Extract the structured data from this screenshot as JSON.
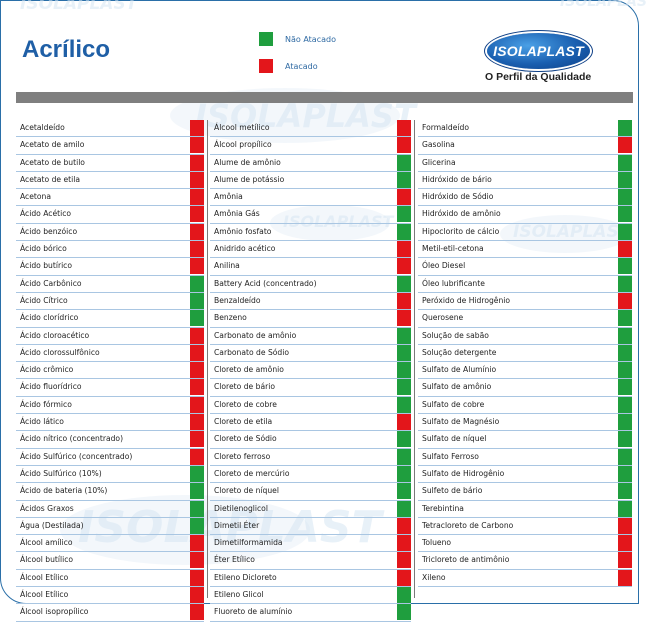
{
  "header": {
    "title": "Acrílico",
    "legend": [
      {
        "label": "Não Atacado",
        "color": "#1f9e3e"
      },
      {
        "label": "Atacado",
        "color": "#e3161b"
      }
    ],
    "logo_text": "ISOLAPLAST",
    "tagline": "O Perfil da Qualidade"
  },
  "colors": {
    "green": "#1f9e3e",
    "red": "#e3161b",
    "accent": "#1f5fa6"
  },
  "columns": [
    [
      {
        "name": "Acetaldeído",
        "status": "red"
      },
      {
        "name": "Acetato de amilo",
        "status": "red"
      },
      {
        "name": "Acetato de butilo",
        "status": "red"
      },
      {
        "name": "Acetato de etila",
        "status": "red"
      },
      {
        "name": "Acetona",
        "status": "red"
      },
      {
        "name": "Ácido Acético",
        "status": "red"
      },
      {
        "name": "Ácido benzóico",
        "status": "red"
      },
      {
        "name": "Ácido bórico",
        "status": "red"
      },
      {
        "name": "Ácido butírico",
        "status": "red"
      },
      {
        "name": "Ácido Carbônico",
        "status": "green"
      },
      {
        "name": "Ácido Cítrico",
        "status": "green"
      },
      {
        "name": "Ácido clorídrico",
        "status": "green"
      },
      {
        "name": "Ácido cloroacético",
        "status": "red"
      },
      {
        "name": "Ácido clorossulfônico",
        "status": "red"
      },
      {
        "name": "Ácido crômico",
        "status": "red"
      },
      {
        "name": "Ácido fluorídrico",
        "status": "red"
      },
      {
        "name": "Ácido fórmico",
        "status": "red"
      },
      {
        "name": "Ácido lático",
        "status": "red"
      },
      {
        "name": "Ácido nítrico (concentrado)",
        "status": "red"
      },
      {
        "name": "Ácido Sulfúrico (concentrado)",
        "status": "red"
      },
      {
        "name": "Ácido Sulfúrico (10%)",
        "status": "green"
      },
      {
        "name": "Ácido de bateria (10%)",
        "status": "green"
      },
      {
        "name": "Ácidos Graxos",
        "status": "green"
      },
      {
        "name": "Água (Destilada)",
        "status": "green"
      },
      {
        "name": "Álcool amílico",
        "status": "red"
      },
      {
        "name": "Álcool butílico",
        "status": "red"
      },
      {
        "name": "Álcool Etílico",
        "status": "red"
      },
      {
        "name": "Álcool Etílico",
        "status": "red"
      },
      {
        "name": "Álcool isopropílico",
        "status": "red"
      }
    ],
    [
      {
        "name": "Álcool metílico",
        "status": "red"
      },
      {
        "name": "Álcool propílico",
        "status": "red"
      },
      {
        "name": "Alume de amônio",
        "status": "green"
      },
      {
        "name": "Alume de potássio",
        "status": "green"
      },
      {
        "name": "Amônia",
        "status": "red"
      },
      {
        "name": "Amônia Gás",
        "status": "green"
      },
      {
        "name": "Amônio fosfato",
        "status": "green"
      },
      {
        "name": "Anidrido acético",
        "status": "red"
      },
      {
        "name": "Anilina",
        "status": "red"
      },
      {
        "name": "Battery Acid (concentrado)",
        "status": "green"
      },
      {
        "name": "Benzaldeído",
        "status": "red"
      },
      {
        "name": "Benzeno",
        "status": "red"
      },
      {
        "name": "Carbonato de amônio",
        "status": "green"
      },
      {
        "name": "Carbonato de Sódio",
        "status": "green"
      },
      {
        "name": "Cloreto de amônio",
        "status": "green"
      },
      {
        "name": "Cloreto de bário",
        "status": "green"
      },
      {
        "name": "Cloreto de cobre",
        "status": "green"
      },
      {
        "name": "Cloreto de etila",
        "status": "red"
      },
      {
        "name": "Cloreto de Sódio",
        "status": "green"
      },
      {
        "name": "Cloreto ferroso",
        "status": "green"
      },
      {
        "name": "Cloreto de mercúrio",
        "status": "green"
      },
      {
        "name": "Cloreto de níquel",
        "status": "green"
      },
      {
        "name": "Dietilenoglicol",
        "status": "green"
      },
      {
        "name": "Dimetil Éter",
        "status": "red"
      },
      {
        "name": "Dimetilformamida",
        "status": "red"
      },
      {
        "name": "Éter Etílico",
        "status": "red"
      },
      {
        "name": "Etileno Dicloreto",
        "status": "red"
      },
      {
        "name": "Etileno Glicol",
        "status": "green"
      },
      {
        "name": "Fluoreto de alumínio",
        "status": "green"
      }
    ],
    [
      {
        "name": "Formaldeído",
        "status": "green"
      },
      {
        "name": "Gasolina",
        "status": "red"
      },
      {
        "name": "Glicerina",
        "status": "green"
      },
      {
        "name": "Hidróxido de bário",
        "status": "green"
      },
      {
        "name": "Hidróxido de Sódio",
        "status": "green"
      },
      {
        "name": "Hidróxido de amônio",
        "status": "green"
      },
      {
        "name": "Hipoclorito de cálcio",
        "status": "green"
      },
      {
        "name": "Metil-etil-cetona",
        "status": "red"
      },
      {
        "name": "Óleo Diesel",
        "status": "green"
      },
      {
        "name": "Óleo lubrificante",
        "status": "green"
      },
      {
        "name": "Peróxido de Hidrogênio",
        "status": "red"
      },
      {
        "name": "Querosene",
        "status": "green"
      },
      {
        "name": "Solução de sabão",
        "status": "green"
      },
      {
        "name": "Solução detergente",
        "status": "green"
      },
      {
        "name": "Sulfato de Alumínio",
        "status": "green"
      },
      {
        "name": "Sulfato de amônio",
        "status": "green"
      },
      {
        "name": "Sulfato de cobre",
        "status": "green"
      },
      {
        "name": "Sulfato de Magnésio",
        "status": "green"
      },
      {
        "name": "Sulfato de níquel",
        "status": "green"
      },
      {
        "name": "Sulfato Ferroso",
        "status": "green"
      },
      {
        "name": "Sulfato de Hidrogênio",
        "status": "green"
      },
      {
        "name": "Sulfeto de bário",
        "status": "green"
      },
      {
        "name": "Terebintina",
        "status": "green"
      },
      {
        "name": "Tetracloreto de Carbono",
        "status": "red"
      },
      {
        "name": "Tolueno",
        "status": "red"
      },
      {
        "name": "Tricloreto de antimônio",
        "status": "red"
      },
      {
        "name": "Xileno",
        "status": "red"
      }
    ]
  ]
}
